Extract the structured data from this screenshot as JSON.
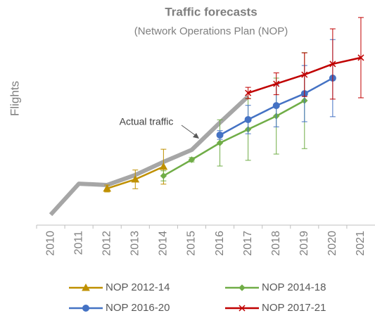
{
  "chart_data": {
    "type": "line",
    "title": "Traffic forecasts",
    "subtitle": "(Network Operations Plan (NOP)",
    "y_label": "Flights",
    "categories": [
      "2010",
      "2011",
      "2012",
      "2013",
      "2014",
      "2015",
      "2016",
      "2017",
      "2018",
      "2019",
      "2020",
      "2021"
    ],
    "ylim": [
      0,
      100
    ],
    "actual": {
      "label": "Actual traffic",
      "color": "#a6a6a6",
      "values": [
        4.8,
        19,
        18.4,
        23,
        29,
        34.5,
        47,
        59,
        null,
        null,
        null,
        null
      ]
    },
    "series": [
      {
        "name": "NOP 2012-14",
        "color": "#bf9000",
        "marker": "triangle",
        "values": [
          null,
          null,
          16.8,
          21,
          26.8,
          null,
          null,
          null,
          null,
          null,
          null,
          null
        ],
        "errors": [
          null,
          null,
          1.6,
          4.3,
          8,
          null,
          null,
          null,
          null,
          null,
          null,
          null
        ]
      },
      {
        "name": "NOP 2014-18",
        "color": "#70ad47",
        "marker": "diamond",
        "values": [
          null,
          null,
          null,
          null,
          22.6,
          30,
          37.7,
          43.9,
          50,
          57.1,
          null,
          null
        ],
        "errors": [
          null,
          null,
          null,
          null,
          2.3,
          1,
          10.6,
          14.2,
          17.4,
          22,
          null,
          null
        ]
      },
      {
        "name": "NOP 2016-20",
        "color": "#4472c4",
        "marker": "circle",
        "values": [
          null,
          null,
          null,
          null,
          null,
          null,
          41.3,
          48.4,
          54.8,
          60.3,
          67.4,
          null
        ],
        "errors": [
          null,
          null,
          null,
          null,
          null,
          null,
          2,
          6.5,
          9.7,
          12.9,
          17.7,
          null
        ]
      },
      {
        "name": "NOP 2017-21",
        "color": "#c00000",
        "marker": "cross",
        "values": [
          null,
          null,
          null,
          null,
          null,
          null,
          null,
          60.6,
          64.8,
          69,
          73.9,
          76.8
        ],
        "errors": [
          null,
          null,
          null,
          null,
          null,
          null,
          null,
          2.6,
          5,
          10,
          16.1,
          18.4
        ]
      }
    ]
  }
}
